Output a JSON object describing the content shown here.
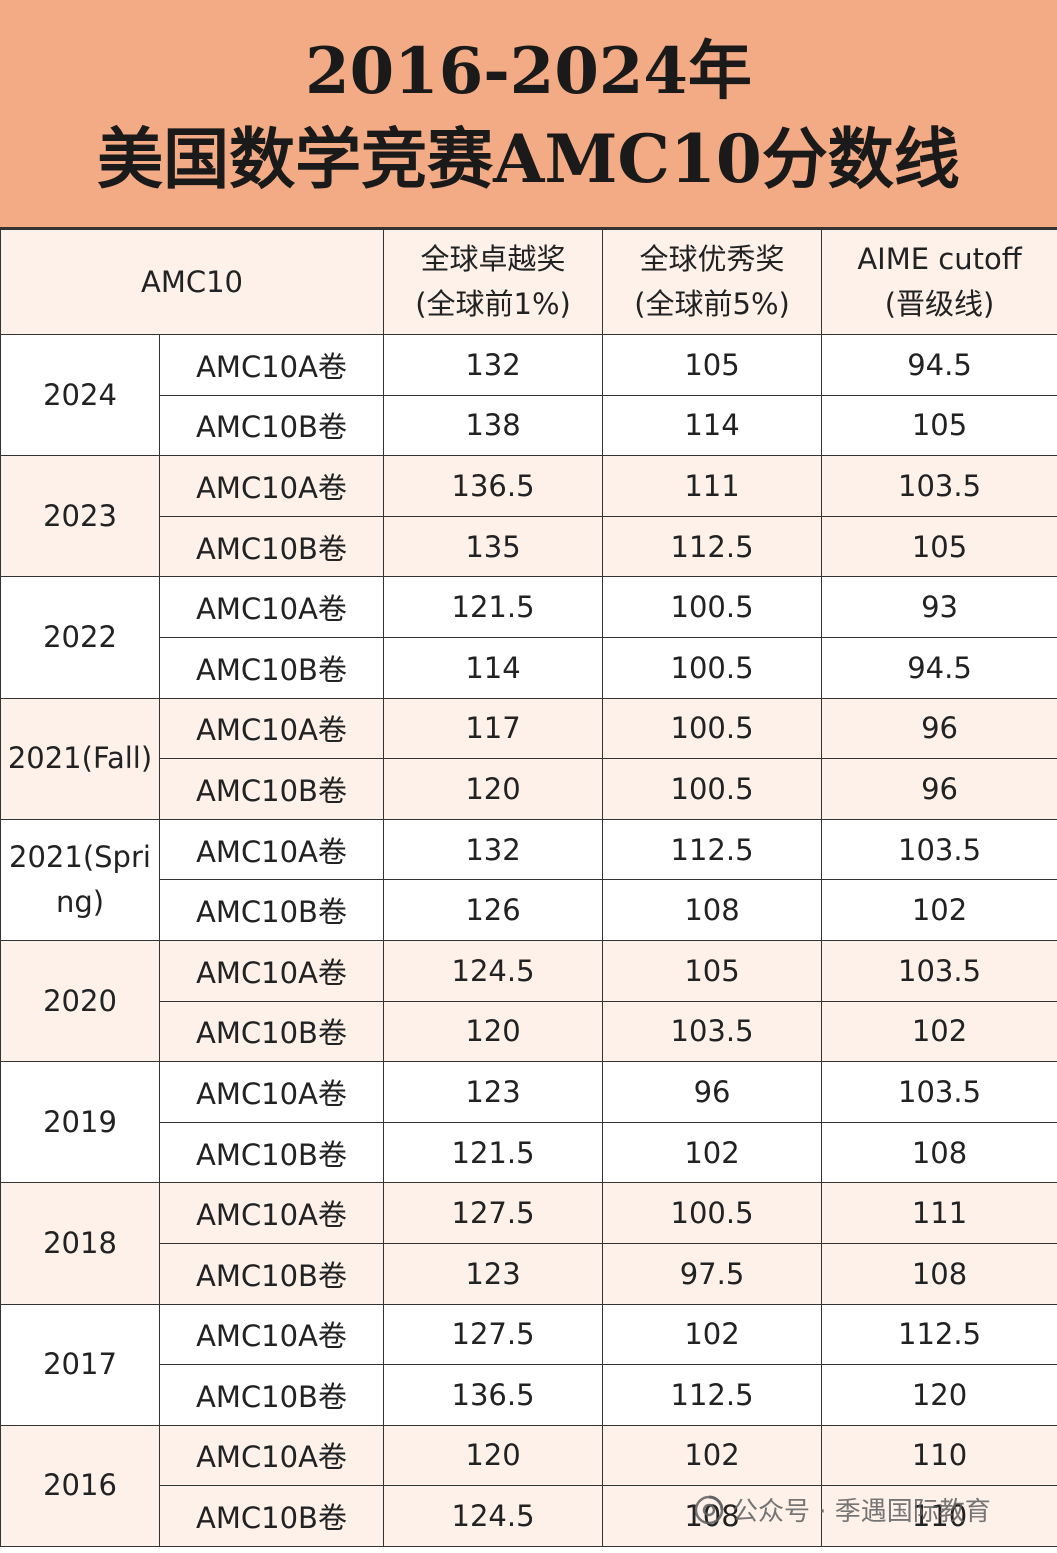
{
  "title": {
    "line1": "2016-2024年",
    "line2": "美国数学竞赛AMC10分数线"
  },
  "table": {
    "corner_header": "AMC10",
    "columns": [
      {
        "line1": "全球卓越奖",
        "line2": "(全球前1%)"
      },
      {
        "line1": "全球优秀奖",
        "line2": "(全球前5%)"
      },
      {
        "line1": "AIME cutoff",
        "line2": "(晋级线)"
      }
    ],
    "rows": [
      {
        "year": "2024",
        "papers": [
          {
            "name": "AMC10A卷",
            "values": [
              "132",
              "105",
              "94.5"
            ]
          },
          {
            "name": "AMC10B卷",
            "values": [
              "138",
              "114",
              "105"
            ]
          }
        ]
      },
      {
        "year": "2023",
        "papers": [
          {
            "name": "AMC10A卷",
            "values": [
              "136.5",
              "111",
              "103.5"
            ]
          },
          {
            "name": "AMC10B卷",
            "values": [
              "135",
              "112.5",
              "105"
            ]
          }
        ]
      },
      {
        "year": "2022",
        "papers": [
          {
            "name": "AMC10A卷",
            "values": [
              "121.5",
              "100.5",
              "93"
            ]
          },
          {
            "name": "AMC10B卷",
            "values": [
              "114",
              "100.5",
              "94.5"
            ]
          }
        ]
      },
      {
        "year": "2021(Fall)",
        "papers": [
          {
            "name": "AMC10A卷",
            "values": [
              "117",
              "100.5",
              "96"
            ]
          },
          {
            "name": "AMC10B卷",
            "values": [
              "120",
              "100.5",
              "96"
            ]
          }
        ]
      },
      {
        "year": "2021(Spring)",
        "papers": [
          {
            "name": "AMC10A卷",
            "values": [
              "132",
              "112.5",
              "103.5"
            ]
          },
          {
            "name": "AMC10B卷",
            "values": [
              "126",
              "108",
              "102"
            ]
          }
        ]
      },
      {
        "year": "2020",
        "papers": [
          {
            "name": "AMC10A卷",
            "values": [
              "124.5",
              "105",
              "103.5"
            ]
          },
          {
            "name": "AMC10B卷",
            "values": [
              "120",
              "103.5",
              "102"
            ]
          }
        ]
      },
      {
        "year": "2019",
        "papers": [
          {
            "name": "AMC10A卷",
            "values": [
              "123",
              "96",
              "103.5"
            ]
          },
          {
            "name": "AMC10B卷",
            "values": [
              "121.5",
              "102",
              "108"
            ]
          }
        ]
      },
      {
        "year": "2018",
        "papers": [
          {
            "name": "AMC10A卷",
            "values": [
              "127.5",
              "100.5",
              "111"
            ]
          },
          {
            "name": "AMC10B卷",
            "values": [
              "123",
              "97.5",
              "108"
            ]
          }
        ]
      },
      {
        "year": "2017",
        "papers": [
          {
            "name": "AMC10A卷",
            "values": [
              "127.5",
              "102",
              "112.5"
            ]
          },
          {
            "name": "AMC10B卷",
            "values": [
              "136.5",
              "112.5",
              "120"
            ]
          }
        ]
      },
      {
        "year": "2016",
        "papers": [
          {
            "name": "AMC10A卷",
            "values": [
              "120",
              "102",
              "110"
            ]
          },
          {
            "name": "AMC10B卷",
            "values": [
              "124.5",
              "108",
              "110"
            ]
          }
        ]
      }
    ]
  },
  "watermark": {
    "icon": "wechat-official-account-icon",
    "text": "公众号 · 季遇国际教育"
  },
  "colors": {
    "banner": "#f2ab84",
    "row_tint": "#fdf1ea",
    "border": "#333333"
  }
}
